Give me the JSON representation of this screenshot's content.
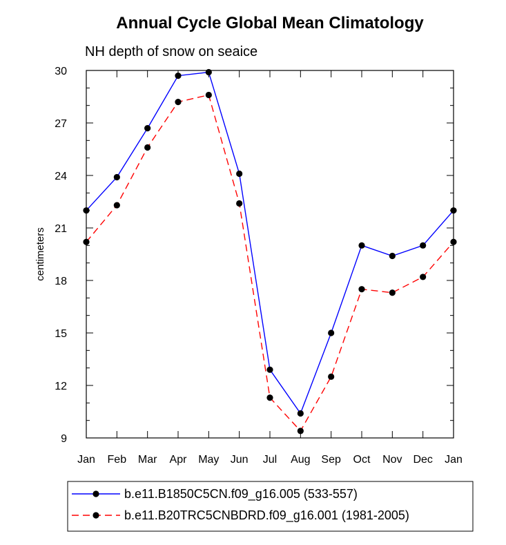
{
  "chart_data": {
    "type": "line",
    "title": "Annual Cycle Global Mean Climatology",
    "subtitle": "NH depth of snow on seaice",
    "xlabel": "",
    "ylabel": "centimeters",
    "ylim": [
      9,
      30
    ],
    "yticks": [
      "9",
      "12",
      "15",
      "18",
      "21",
      "24",
      "27",
      "30"
    ],
    "categories": [
      "Jan",
      "Feb",
      "Mar",
      "Apr",
      "May",
      "Jun",
      "Jul",
      "Aug",
      "Sep",
      "Oct",
      "Nov",
      "Dec",
      "Jan"
    ],
    "series": [
      {
        "name": "b.e11.B1850C5CN.f09_g16.005 (533-557)",
        "color": "#0000ff",
        "dash": "solid",
        "values": [
          22.0,
          23.9,
          26.7,
          29.7,
          29.9,
          24.1,
          12.9,
          10.4,
          15.0,
          20.0,
          19.4,
          20.0,
          22.0
        ]
      },
      {
        "name": "b.e11.B20TRC5CNBDRD.f09_g16.001 (1981-2005)",
        "color": "#ff0000",
        "dash": "dashed",
        "values": [
          20.2,
          22.3,
          25.6,
          28.2,
          28.6,
          22.4,
          11.3,
          9.4,
          12.5,
          17.5,
          17.3,
          18.2,
          20.2
        ]
      }
    ],
    "legend_position": "bottom"
  }
}
